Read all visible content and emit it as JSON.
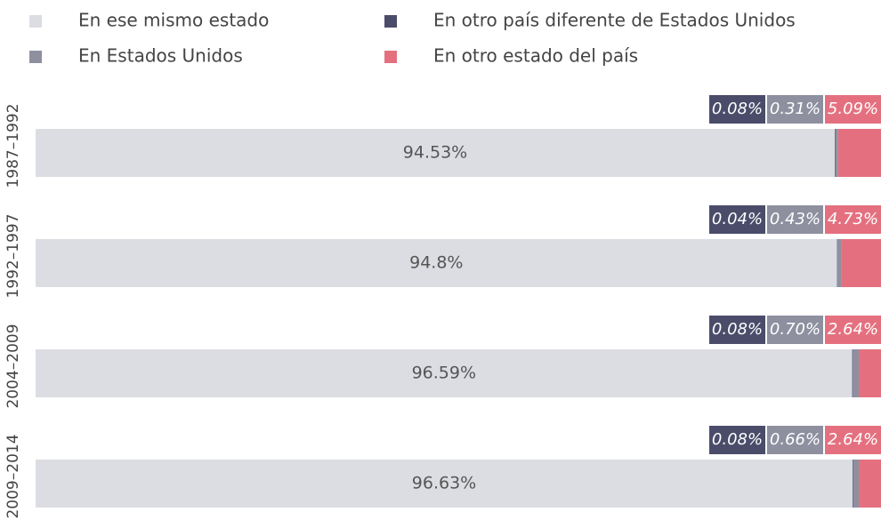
{
  "chart_data": {
    "type": "stacked-bar-horizontal",
    "categories": [
      "1987–1992",
      "1992–1997",
      "2004–2009",
      "2009–2014"
    ],
    "xlim": [
      0,
      100
    ],
    "series": [
      {
        "name": "En ese mismo estado",
        "color": "#dcdde3",
        "values": [
          94.53,
          94.8,
          96.59,
          96.63
        ],
        "value_labels": [
          "94.53%",
          "94.8%",
          "96.59%",
          "96.63%"
        ]
      },
      {
        "name": "En otro país diferente de Estados Unidos",
        "color": "#4a4c6a",
        "values": [
          0.08,
          0.04,
          0.08,
          0.08
        ],
        "value_labels": [
          "0.08%",
          "0.04%",
          "0.08%",
          "0.08%"
        ]
      },
      {
        "name": "En Estados Unidos",
        "color": "#8e90a0",
        "values": [
          0.31,
          0.43,
          0.7,
          0.66
        ],
        "value_labels": [
          "0.31%",
          "0.43%",
          "0.70%",
          "0.66%"
        ]
      },
      {
        "name": "En otro estado del país",
        "color": "#e4707f",
        "values": [
          5.09,
          4.73,
          2.64,
          2.64
        ],
        "value_labels": [
          "5.09%",
          "4.73%",
          "2.64%",
          "2.64%"
        ]
      }
    ]
  }
}
